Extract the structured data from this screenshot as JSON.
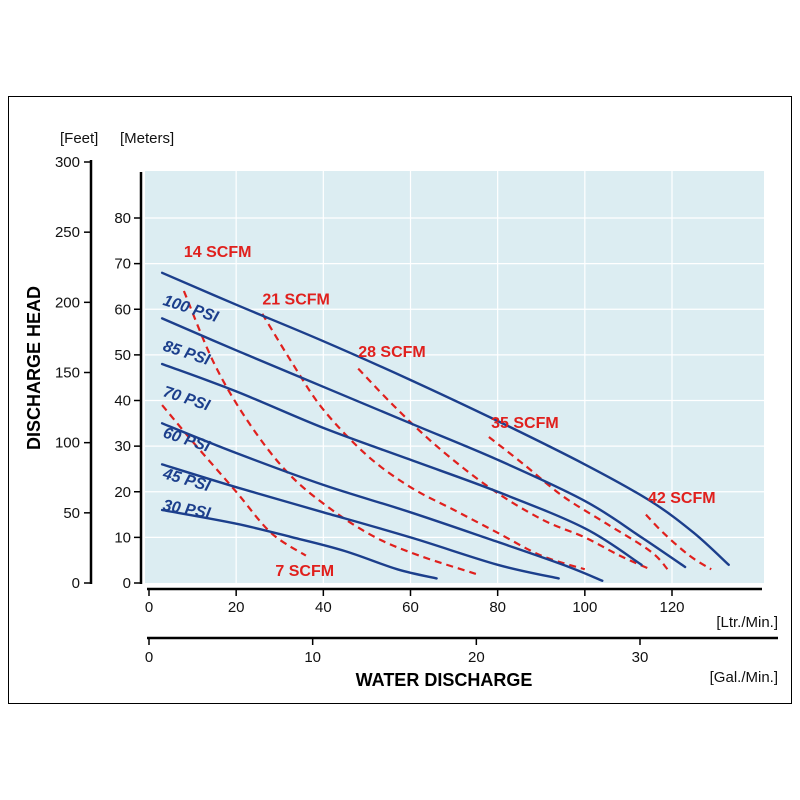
{
  "chart_data": {
    "type": "line",
    "colors": {
      "psi": "#1c3f8c",
      "scfm": "#e0201d",
      "plot_bg": "#dcedf2",
      "grid": "#ffffff"
    },
    "axes": {
      "left_feet": {
        "unit_label": "[Feet]",
        "ticks": [
          "0",
          "50",
          "100",
          "150",
          "200",
          "250",
          "300"
        ],
        "lim": [
          0,
          300
        ]
      },
      "left_meters": {
        "unit_label": "[Meters]",
        "ticks": [
          "0",
          "10",
          "20",
          "30",
          "40",
          "50",
          "60",
          "70",
          "80"
        ],
        "lim": [
          0,
          91.44
        ]
      },
      "bottom_lpm": {
        "unit_label": "[Ltr./Min.]",
        "ticks": [
          "0",
          "20",
          "40",
          "60",
          "80",
          "100",
          "120"
        ],
        "lim": [
          0,
          140
        ]
      },
      "bottom_gpm": {
        "unit_label": "[Gal./Min.]",
        "ticks": [
          "0",
          "10",
          "20",
          "30"
        ],
        "lim": [
          0,
          37
        ]
      },
      "ylabel": "DISCHARGE HEAD",
      "xlabel": "WATER DISCHARGE"
    },
    "grid": true,
    "series": [
      {
        "name": "100 PSI",
        "kind": "pressure",
        "points": [
          [
            3,
            68
          ],
          [
            20,
            61
          ],
          [
            40,
            53
          ],
          [
            60,
            44.5
          ],
          [
            80,
            35.5
          ],
          [
            100,
            26
          ],
          [
            115,
            18
          ],
          [
            125,
            11
          ],
          [
            133,
            4
          ]
        ]
      },
      {
        "name": "85 PSI",
        "kind": "pressure",
        "points": [
          [
            3,
            58
          ],
          [
            20,
            51
          ],
          [
            40,
            43
          ],
          [
            60,
            35
          ],
          [
            80,
            27
          ],
          [
            100,
            18
          ],
          [
            113,
            10
          ],
          [
            123,
            3.5
          ]
        ]
      },
      {
        "name": "70 PSI",
        "kind": "pressure",
        "points": [
          [
            3,
            48
          ],
          [
            20,
            42
          ],
          [
            40,
            34
          ],
          [
            60,
            27
          ],
          [
            80,
            20
          ],
          [
            100,
            12
          ],
          [
            113,
            4
          ]
        ]
      },
      {
        "name": "60 PSI",
        "kind": "pressure",
        "points": [
          [
            3,
            35
          ],
          [
            20,
            28.5
          ],
          [
            40,
            21.5
          ],
          [
            60,
            15.5
          ],
          [
            80,
            9
          ],
          [
            95,
            4
          ],
          [
            104,
            0.5
          ]
        ]
      },
      {
        "name": "45 PSI",
        "kind": "pressure",
        "points": [
          [
            3,
            26
          ],
          [
            20,
            21
          ],
          [
            40,
            15.5
          ],
          [
            60,
            10
          ],
          [
            80,
            4
          ],
          [
            94,
            1
          ]
        ]
      },
      {
        "name": "30 PSI",
        "kind": "pressure",
        "points": [
          [
            3,
            16
          ],
          [
            20,
            13
          ],
          [
            33,
            10
          ],
          [
            45,
            7
          ],
          [
            57,
            3
          ],
          [
            66,
            1
          ]
        ]
      },
      {
        "name": "7 SCFM",
        "kind": "air",
        "points": [
          [
            3,
            39
          ],
          [
            10,
            31
          ],
          [
            20,
            20
          ],
          [
            28,
            11
          ],
          [
            36,
            6
          ]
        ]
      },
      {
        "name": "14 SCFM",
        "kind": "air",
        "points": [
          [
            8,
            64
          ],
          [
            15,
            48
          ],
          [
            23,
            35
          ],
          [
            32,
            24
          ],
          [
            42,
            16
          ],
          [
            52,
            10
          ],
          [
            62,
            6
          ],
          [
            75,
            2
          ]
        ]
      },
      {
        "name": "21 SCFM",
        "kind": "air",
        "points": [
          [
            26,
            59
          ],
          [
            33,
            48
          ],
          [
            40,
            38
          ],
          [
            50,
            28
          ],
          [
            60,
            21
          ],
          [
            70,
            16
          ],
          [
            80,
            11
          ],
          [
            90,
            6
          ],
          [
            100,
            3
          ]
        ]
      },
      {
        "name": "28 SCFM",
        "kind": "air",
        "points": [
          [
            48,
            47
          ],
          [
            56,
            39
          ],
          [
            66,
            30
          ],
          [
            78,
            21
          ],
          [
            90,
            14
          ],
          [
            100,
            10
          ],
          [
            108,
            6
          ],
          [
            115,
            3
          ]
        ]
      },
      {
        "name": "35 SCFM",
        "kind": "air",
        "points": [
          [
            78,
            32
          ],
          [
            86,
            26
          ],
          [
            95,
            19
          ],
          [
            105,
            13
          ],
          [
            115,
            7
          ],
          [
            119,
            3
          ]
        ]
      },
      {
        "name": "42 SCFM",
        "kind": "air",
        "points": [
          [
            114,
            15
          ],
          [
            118,
            11
          ],
          [
            124,
            6
          ],
          [
            129,
            3
          ]
        ]
      }
    ],
    "labels": [
      {
        "text": "100 PSI",
        "kind": "pressure",
        "x": 3,
        "y": 61,
        "rotate": 18
      },
      {
        "text": "85 PSI",
        "kind": "pressure",
        "x": 3,
        "y": 51,
        "rotate": 18
      },
      {
        "text": "70 PSI",
        "kind": "pressure",
        "x": 3,
        "y": 41,
        "rotate": 18
      },
      {
        "text": "60 PSI",
        "kind": "pressure",
        "x": 3,
        "y": 32,
        "rotate": 18
      },
      {
        "text": "45 PSI",
        "kind": "pressure",
        "x": 3,
        "y": 23,
        "rotate": 16
      },
      {
        "text": "30 PSI",
        "kind": "pressure",
        "x": 3,
        "y": 16,
        "rotate": 10
      },
      {
        "text": "14 SCFM",
        "kind": "air",
        "x": 8,
        "y": 71.5,
        "rotate": 0
      },
      {
        "text": "21 SCFM",
        "kind": "air",
        "x": 26,
        "y": 61,
        "rotate": 0
      },
      {
        "text": "28 SCFM",
        "kind": "air",
        "x": 48,
        "y": 49.5,
        "rotate": 0
      },
      {
        "text": "35 SCFM",
        "kind": "air",
        "x": 78.5,
        "y": 34,
        "rotate": 0
      },
      {
        "text": "42 SCFM",
        "kind": "air",
        "x": 114.5,
        "y": 17.5,
        "rotate": 0
      },
      {
        "text": "7 SCFM",
        "kind": "air",
        "x": 29,
        "y": 1.5,
        "rotate": 0
      }
    ]
  }
}
